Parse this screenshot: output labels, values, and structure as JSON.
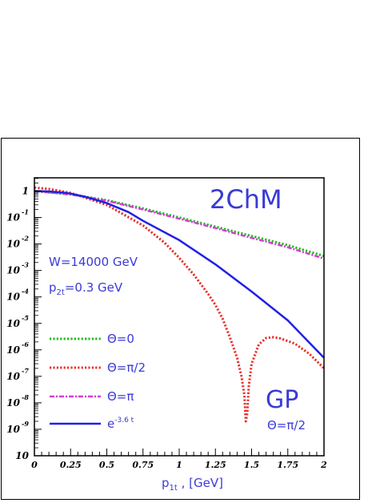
{
  "chart_data": {
    "type": "line",
    "xlabel_main": "p",
    "xlabel_sub": "1t",
    "xlabel_rest": " , [GeV]",
    "xlim": [
      0,
      2
    ],
    "ylim_log10": [
      -10,
      0.5
    ],
    "ylog": true,
    "x_ticks": [
      "0",
      "0.25",
      "0.5",
      "0.75",
      "1",
      "1.25",
      "1.5",
      "1.75",
      "2"
    ],
    "y_ticks": [
      {
        "base": "1",
        "exp": ""
      },
      {
        "base": "10",
        "exp": "-1"
      },
      {
        "base": "10",
        "exp": "-2"
      },
      {
        "base": "10",
        "exp": "-3"
      },
      {
        "base": "10",
        "exp": "-4"
      },
      {
        "base": "10",
        "exp": "-5"
      },
      {
        "base": "10",
        "exp": "-6"
      },
      {
        "base": "10",
        "exp": "-7"
      },
      {
        "base": "10",
        "exp": "-8"
      },
      {
        "base": "10",
        "exp": "-9"
      },
      {
        "base": "10",
        "exp": ""
      }
    ],
    "annotations": {
      "model": "2ChM",
      "energy": "W=14000 GeV",
      "p2t_main": "p",
      "p2t_sub": "2t",
      "p2t_rest": "=0.3 GeV",
      "gp": "GP",
      "gp_theta": "Θ=π/2"
    },
    "legend_placement": "left-middle",
    "series": [
      {
        "name": "Θ=0",
        "color": "#22b822",
        "style": "dotted",
        "x": [
          0,
          0.25,
          0.5,
          0.75,
          1,
          1.25,
          1.5,
          1.75,
          2
        ],
        "y": [
          1.0,
          0.75,
          0.45,
          0.22,
          0.1,
          0.045,
          0.02,
          0.009,
          0.0035
        ]
      },
      {
        "name": "Θ=π/2",
        "color": "#e8302a",
        "style": "dotted",
        "x": [
          0,
          0.1,
          0.25,
          0.5,
          0.75,
          0.9,
          1.0,
          1.1,
          1.2,
          1.25,
          1.3,
          1.35,
          1.4,
          1.43,
          1.45,
          1.46,
          1.47,
          1.48,
          1.5,
          1.55,
          1.6,
          1.65,
          1.7,
          1.8,
          1.9,
          2.0
        ],
        "y": [
          1.35,
          1.2,
          0.85,
          0.3,
          0.05,
          0.011,
          0.003,
          0.0007,
          0.00013,
          5e-05,
          1.5e-05,
          3e-06,
          5e-07,
          1e-07,
          2e-08,
          2e-09,
          4e-09,
          4e-08,
          3e-07,
          1.6e-06,
          2.8e-06,
          3e-06,
          2.7e-06,
          1.7e-06,
          7e-07,
          2e-07
        ]
      },
      {
        "name": "Θ=π",
        "color": "#d040d0",
        "style": "dashdot",
        "x": [
          0,
          0.25,
          0.5,
          0.75,
          1,
          1.25,
          1.5,
          1.75,
          2
        ],
        "y": [
          1.0,
          0.74,
          0.43,
          0.2,
          0.09,
          0.04,
          0.017,
          0.0075,
          0.0028
        ]
      },
      {
        "name": "e",
        "exp_label": "-3.6 t",
        "color": "#2020e6",
        "style": "solid",
        "x": [
          0,
          0.1,
          0.2,
          0.25,
          0.35,
          0.5,
          0.65,
          0.75,
          1,
          1.25,
          1.5,
          1.75,
          2
        ],
        "y": [
          1.0,
          0.97,
          0.87,
          0.8,
          0.61,
          0.35,
          0.16,
          0.075,
          0.014,
          0.0017,
          0.00016,
          1.3e-05,
          5e-07
        ]
      }
    ]
  }
}
